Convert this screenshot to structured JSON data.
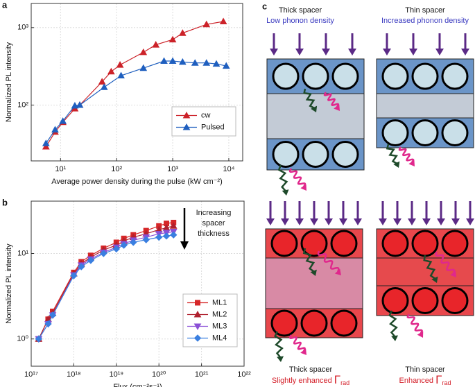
{
  "chart_data": [
    {
      "type": "line",
      "panel_label": "a",
      "x_label": "Average power density during the pulse (kW cm⁻²)",
      "y_label": "Normalized PL intensity",
      "log_x": true,
      "log_y": true,
      "grid": true,
      "legend": "lower right",
      "xlim": [
        3,
        17700
      ],
      "ylim": [
        19,
        2050
      ],
      "xticks": [
        {
          "value": 10,
          "label": "10¹"
        },
        {
          "value": 100,
          "label": "10²"
        },
        {
          "value": 1000,
          "label": "10³"
        },
        {
          "value": 10000,
          "label": "10⁴"
        }
      ],
      "yticks": [
        {
          "value": 100,
          "label": "10²"
        },
        {
          "value": 1000,
          "label": "10³"
        }
      ],
      "series": [
        {
          "name": "cw",
          "color": "#cc2229",
          "marker": "triangle-up",
          "x": [
            5.5,
            8,
            11,
            18,
            22,
            55,
            80,
            115,
            300,
            500,
            1000,
            1500,
            4000,
            8000
          ],
          "values": [
            29,
            45,
            60,
            90,
            100,
            200,
            270,
            330,
            480,
            600,
            700,
            850,
            1100,
            1200
          ]
        },
        {
          "name": "Pulsed",
          "color": "#1f5fbf",
          "marker": "triangle-up",
          "x": [
            5.5,
            8,
            11,
            18,
            22,
            60,
            120,
            300,
            700,
            1000,
            1500,
            2500,
            4000,
            6000,
            9000
          ],
          "values": [
            32,
            48,
            62,
            98,
            100,
            170,
            240,
            300,
            370,
            370,
            360,
            350,
            350,
            340,
            320
          ]
        }
      ]
    },
    {
      "type": "line",
      "panel_label": "b",
      "x_label": "Flux (cm⁻²s⁻¹)",
      "y_label": "Normalized PL intensity",
      "log_x": true,
      "log_y": true,
      "grid": true,
      "legend": "lower right",
      "annotation": "Increasing spacer thickness",
      "xlim": [
        1e+17,
        1e+22
      ],
      "ylim": [
        0.48,
        41
      ],
      "xticks": [
        {
          "value": 1e+17,
          "label": "10¹⁷"
        },
        {
          "value": 1e+18,
          "label": "10¹⁸"
        },
        {
          "value": 1e+19,
          "label": "10¹⁹"
        },
        {
          "value": 1e+20,
          "label": "10²⁰"
        },
        {
          "value": 1e+21,
          "label": "10²¹"
        },
        {
          "value": 1e+22,
          "label": "10²²"
        }
      ],
      "yticks": [
        {
          "value": 1,
          "label": "10⁰"
        },
        {
          "value": 10,
          "label": "10¹"
        }
      ],
      "series": [
        {
          "name": "ML1",
          "color": "#d62728",
          "marker": "square",
          "x": [
            1.5e+17,
            2.5e+17,
            3.2e+17,
            1e+18,
            1.5e+18,
            2.5e+18,
            5e+18,
            1e+19,
            1.5e+19,
            2.5e+19,
            5e+19,
            1e+20,
            1.5e+20,
            2.2e+20
          ],
          "values": [
            1,
            1.7,
            2.1,
            6,
            8,
            9.5,
            11.5,
            13.5,
            15,
            16.5,
            18.5,
            21,
            22.5,
            23
          ]
        },
        {
          "name": "ML2",
          "color": "#b0202e",
          "marker": "triangle-up",
          "x": [
            1.5e+17,
            2.5e+17,
            3.2e+17,
            1e+18,
            1.5e+18,
            2.5e+18,
            5e+18,
            1e+19,
            1.5e+19,
            2.5e+19,
            5e+19,
            1e+20,
            1.5e+20,
            2.2e+20
          ],
          "values": [
            1,
            1.7,
            2,
            5.8,
            7.6,
            9,
            11,
            12.5,
            14,
            15.5,
            17,
            19,
            20,
            21
          ]
        },
        {
          "name": "ML3",
          "color": "#8a4fd6",
          "marker": "triangle-down",
          "x": [
            1.5e+17,
            2.5e+17,
            3.2e+17,
            1e+18,
            1.5e+18,
            2.5e+18,
            5e+18,
            1e+19,
            1.5e+19,
            2.5e+19,
            5e+19,
            1e+20,
            1.5e+20,
            2.2e+20
          ],
          "values": [
            1,
            1.5,
            1.9,
            5.6,
            7.3,
            8.6,
            10.3,
            11.8,
            13,
            14.3,
            15.5,
            17,
            17.5,
            18
          ]
        },
        {
          "name": "ML4",
          "color": "#3a7fe0",
          "marker": "diamond",
          "x": [
            1.5e+17,
            2.5e+17,
            3.2e+17,
            1e+18,
            1.5e+18,
            2.5e+18,
            5e+18,
            1e+19,
            1.5e+19,
            2.5e+19,
            5e+19,
            1e+20,
            1.5e+20,
            2.2e+20
          ],
          "values": [
            1,
            1.5,
            1.9,
            5.5,
            7,
            8.3,
            10,
            11.3,
            12.5,
            13.5,
            14.5,
            15.5,
            16,
            16.5
          ]
        }
      ]
    }
  ],
  "diagram": {
    "panel_label": "c",
    "top_left": {
      "title": "Thick spacer",
      "subtitle": "Low phonon density"
    },
    "top_right": {
      "title": "Thin spacer",
      "subtitle": "Increased phonon density"
    },
    "bottom_left": {
      "title": "Thick spacer",
      "caption": "Slightly enhanced",
      "symbol": "Γ",
      "subscript": "rad"
    },
    "bottom_right": {
      "title": "Thin spacer",
      "caption": "Enhanced",
      "symbol": "Γ",
      "subscript": "rad"
    }
  }
}
